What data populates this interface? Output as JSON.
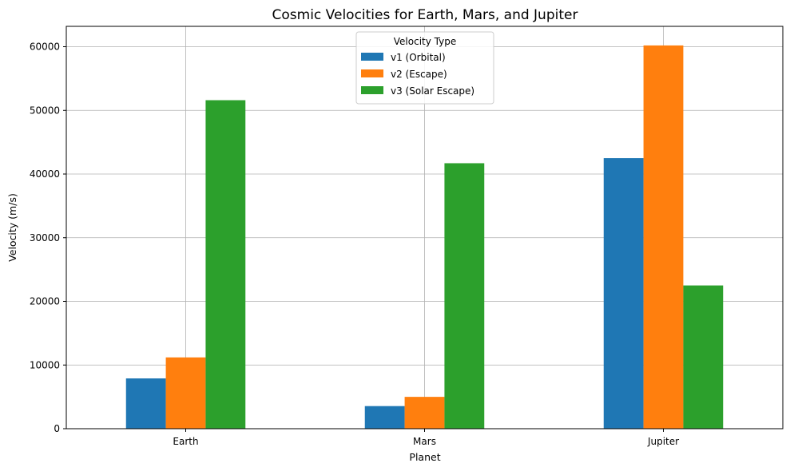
{
  "chart_data": {
    "type": "bar",
    "title": "Cosmic Velocities for Earth, Mars, and Jupiter",
    "xlabel": "Planet",
    "ylabel": "Velocity (m/s)",
    "categories": [
      "Earth",
      "Mars",
      "Jupiter"
    ],
    "series": [
      {
        "name": "v1 (Orbital)",
        "color": "#1f77b4",
        "values": [
          7900,
          3550,
          42500
        ]
      },
      {
        "name": "v2 (Escape)",
        "color": "#ff7f0e",
        "values": [
          11200,
          5000,
          60200
        ]
      },
      {
        "name": "v3 (Solar Escape)",
        "color": "#2ca02c",
        "values": [
          51600,
          41700,
          22500
        ]
      }
    ],
    "ylim": [
      0,
      63200
    ],
    "yticks": [
      0,
      10000,
      20000,
      30000,
      40000,
      50000,
      60000
    ],
    "grid": true,
    "legend": {
      "title": "Velocity Type",
      "placement": "upper-center"
    }
  }
}
